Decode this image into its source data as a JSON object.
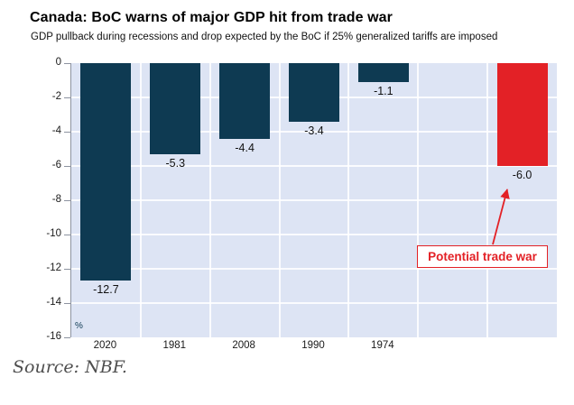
{
  "chart_data": {
    "type": "bar",
    "title": "Canada: BoC warns of major GDP hit from trade war",
    "subtitle": "GDP pullback during recessions and drop expected by the BoC if 25% generalized tariffs are imposed",
    "categories": [
      "2020",
      "1981",
      "2008",
      "1990",
      "1974",
      "",
      ""
    ],
    "values": [
      -12.7,
      -5.3,
      -4.4,
      -3.4,
      -1.1,
      null,
      -6.0
    ],
    "value_labels": [
      "-12.7",
      "-5.3",
      "-4.4",
      "-3.4",
      "-1.1",
      "",
      "-6.0"
    ],
    "colors": [
      "#0e3a52",
      "#0e3a52",
      "#0e3a52",
      "#0e3a52",
      "#0e3a52",
      null,
      "#e32126"
    ],
    "ylabel": "%",
    "ylim": [
      -16,
      0
    ],
    "yticks": [
      0,
      -2,
      -4,
      -6,
      -8,
      -10,
      -12,
      -14,
      -16
    ],
    "grid": true,
    "legend": "none",
    "plot_bg_color": "#dde4f4",
    "bar_color": "#0e3a52",
    "highlight_color": "#e32126",
    "annotation": {
      "label": "Potential trade war",
      "color": "#e32126",
      "target_bar": "-6.0"
    }
  },
  "source": "Source: NBF."
}
